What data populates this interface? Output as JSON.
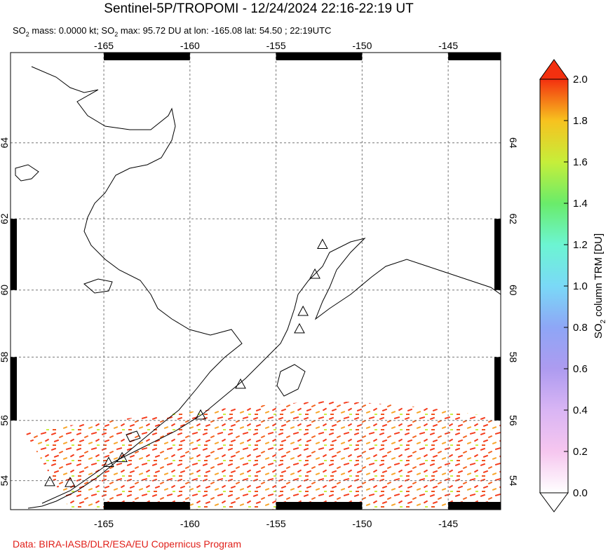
{
  "title": "Sentinel-5P/TROPOMI - 12/24/2024 22:16-22:19 UT",
  "subtitle": [
    "SO",
    "2",
    " mass: 0.0000 kt; SO",
    "2",
    " max: 95.72 DU at lon: -165.08 lat: 54.50 ; 22:19UTC"
  ],
  "map": {
    "xlim": [
      -170.42,
      -141.95
    ],
    "ylim": [
      53.0,
      66.2
    ],
    "xticks": [
      -165,
      -160,
      -155,
      -150,
      -145
    ],
    "yticks": [
      54,
      56,
      58,
      60,
      62,
      64
    ],
    "grid": true,
    "volcanoes": {
      "lon": [
        -152.3,
        -152.74,
        -153.43,
        -153.64,
        -157.06,
        -159.38,
        -163.94,
        -164.72,
        -168.14,
        -166.96
      ],
      "lat": [
        61.3,
        60.46,
        59.38,
        58.86,
        57.16,
        56.18,
        54.78,
        54.62,
        53.97,
        53.94
      ]
    }
  },
  "colorbar": {
    "label": [
      "SO",
      "2",
      " column TRM [DU]"
    ],
    "lim": [
      0,
      2
    ],
    "ticks": [
      {
        "value": 0,
        "label": "0.0"
      },
      0.2,
      0.4,
      0.6,
      0.8,
      {
        "value": 1,
        "label": "1.0"
      },
      1.2,
      1.4,
      1.6,
      1.8,
      {
        "value": 2,
        "label": "2.0"
      }
    ],
    "colors": [
      "#ffffff",
      "#f6c6ef",
      "#d9b5f4",
      "#ad9bf0",
      "#8ea6f6",
      "#7ad9f7",
      "#6cf5d2",
      "#6aec6a",
      "#c6ee3a",
      "#f7c21f",
      "#f3300f"
    ]
  },
  "footer": "Data: BIRA-IASB/DLR/ESA/EU Copernicus Program"
}
